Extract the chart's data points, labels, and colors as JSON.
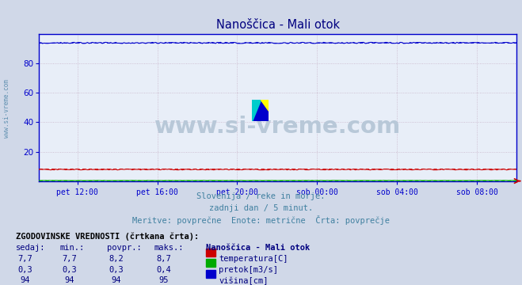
{
  "title": "Nanoščica - Mali otok",
  "bg_color": "#d0d8e8",
  "plot_bg_color": "#e8eef8",
  "grid_color": "#c8b4c8",
  "axis_color": "#0000cc",
  "title_color": "#000080",
  "subtitle_lines": [
    "Slovenija / reke in morje.",
    "zadnji dan / 5 minut.",
    "Meritve: povprečne  Enote: metrične  Črta: povprečje"
  ],
  "subtitle_color": "#4080a0",
  "xlabel_ticks": [
    "pet 12:00",
    "pet 16:00",
    "pet 20:00",
    "sob 00:00",
    "sob 04:00",
    "sob 08:00"
  ],
  "xlabel_tick_positions": [
    0.083,
    0.25,
    0.417,
    0.583,
    0.75,
    0.917
  ],
  "ylim": [
    0,
    100
  ],
  "yticks": [
    20,
    40,
    60,
    80
  ],
  "n_points": 288,
  "temp_value": 7.7,
  "temp_avg": 8.2,
  "pretok_value": 0.3,
  "pretok_avg": 0.3,
  "visina_value": 94.0,
  "visina_avg": 94.0,
  "temp_color": "#cc0000",
  "pretok_color": "#00aa00",
  "visina_color": "#0000cc",
  "watermark": "www.si-vreme.com",
  "watermark_color": "#b8c8d8",
  "sidebar_text": "www.si-vreme.com",
  "sidebar_color": "#6090b0",
  "table_header": "ZGODOVINSKE VREDNOSTI (črtkana črta):",
  "table_cols": [
    "sedaj:",
    "min.:",
    "povpr.:",
    "maks.:",
    "Nanoščica - Mali otok"
  ],
  "table_data": [
    [
      "7,7",
      "7,7",
      "8,2",
      "8,7",
      "temperatura[C]",
      "#cc0000"
    ],
    [
      "0,3",
      "0,3",
      "0,3",
      "0,4",
      "pretok[m3/s]",
      "#00aa00"
    ],
    [
      "94",
      "94",
      "94",
      "95",
      "višina[cm]",
      "#0000cc"
    ]
  ],
  "table_color": "#000080",
  "table_header_color": "#000000"
}
